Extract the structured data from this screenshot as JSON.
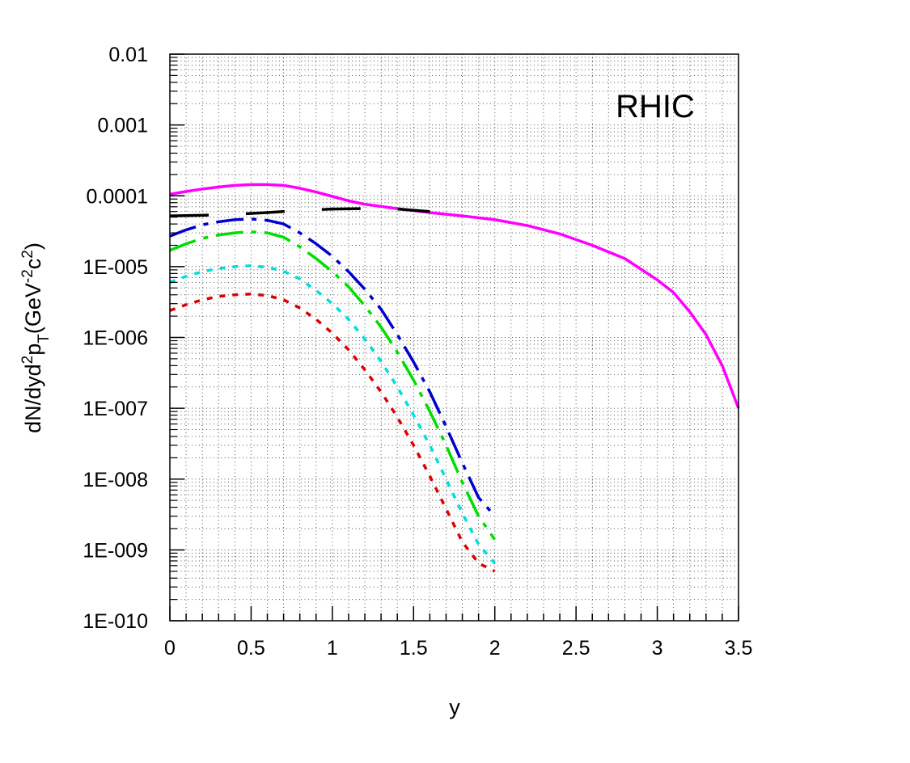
{
  "chart_data": {
    "type": "line",
    "title": "",
    "annotation": "RHIC",
    "xlabel": "y",
    "ylabel": {
      "parts": [
        "dN/dyd",
        "2",
        "p",
        "T",
        "(GeV",
        "-2",
        "c",
        "2",
        ")"
      ]
    },
    "xlim": [
      0,
      3.5
    ],
    "ylim": [
      1e-10,
      0.01
    ],
    "yscale": "log",
    "grid": true,
    "legend": "none",
    "x_ticks": [
      0,
      0.5,
      1,
      1.5,
      2,
      2.5,
      3,
      3.5
    ],
    "x_tick_labels": [
      "0",
      "0.5",
      "1",
      "1.5",
      "2",
      "2.5",
      "3",
      "3.5"
    ],
    "y_ticks": [
      1e-10,
      1e-09,
      1e-08,
      1e-07,
      1e-06,
      1e-05,
      0.0001,
      0.001,
      0.01
    ],
    "y_tick_labels": [
      "1E-010",
      "1E-009",
      "1E-008",
      "1E-007",
      "1E-006",
      "1E-005",
      "0.0001",
      "0.001",
      "0.01"
    ],
    "series": [
      {
        "color": "#ff00ff",
        "dash": "solid",
        "x": [
          0,
          0.1,
          0.2,
          0.3,
          0.4,
          0.5,
          0.6,
          0.7,
          0.8,
          0.9,
          1.0,
          1.1,
          1.2,
          1.4,
          1.6,
          1.8,
          2.0,
          2.2,
          2.4,
          2.6,
          2.8,
          3.0,
          3.1,
          3.2,
          3.3,
          3.4,
          3.5
        ],
        "y": [
          0.000105,
          0.000115,
          0.000125,
          0.000133,
          0.00014,
          0.000144,
          0.000144,
          0.00014,
          0.000128,
          0.000113,
          9.8e-05,
          8.5e-05,
          7.6e-05,
          6.6e-05,
          5.8e-05,
          5.2e-05,
          4.6e-05,
          3.8e-05,
          2.9e-05,
          2e-05,
          1.3e-05,
          6.5e-06,
          4.3e-06,
          2.3e-06,
          1.1e-06,
          4e-07,
          1e-07
        ]
      },
      {
        "color": "#000000",
        "dash": "long-dash",
        "x": [
          0,
          0.2,
          0.4,
          0.6,
          0.8,
          1.0,
          1.2,
          1.4,
          1.6
        ],
        "y": [
          5.2e-05,
          5.3e-05,
          5.5e-05,
          5.8e-05,
          6.2e-05,
          6.5e-05,
          6.6e-05,
          6.5e-05,
          6e-05
        ]
      },
      {
        "color": "#0000cc",
        "dash": "dash-dot",
        "x": [
          0,
          0.1,
          0.2,
          0.3,
          0.4,
          0.5,
          0.6,
          0.7,
          0.8,
          0.9,
          1.0,
          1.1,
          1.2,
          1.3,
          1.4,
          1.5,
          1.6,
          1.7,
          1.8,
          1.9,
          2.0
        ],
        "y": [
          2.7e-05,
          3.3e-05,
          3.9e-05,
          4.3e-05,
          4.6e-05,
          4.7e-05,
          4.5e-05,
          4e-05,
          3e-05,
          2.1e-05,
          1.4e-05,
          8.5e-06,
          4.8e-06,
          2.5e-06,
          1.1e-06,
          4.5e-07,
          1.7e-07,
          5.5e-08,
          1.7e-08,
          5.5e-09,
          3e-09
        ]
      },
      {
        "color": "#00dd00",
        "dash": "dash-dot",
        "x": [
          0,
          0.1,
          0.2,
          0.3,
          0.4,
          0.5,
          0.6,
          0.7,
          0.8,
          0.9,
          1.0,
          1.1,
          1.2,
          1.3,
          1.4,
          1.5,
          1.6,
          1.7,
          1.8,
          1.9,
          2.0
        ],
        "y": [
          1.7e-05,
          2.1e-05,
          2.5e-05,
          2.8e-05,
          3e-05,
          3.1e-05,
          3e-05,
          2.6e-05,
          1.9e-05,
          1.3e-05,
          8.5e-06,
          5.2e-06,
          2.8e-06,
          1.4e-06,
          6.2e-07,
          2.5e-07,
          9e-08,
          3e-08,
          9e-09,
          3e-09,
          1.4e-09
        ]
      },
      {
        "color": "#00dddd",
        "dash": "dotted",
        "x": [
          0,
          0.1,
          0.2,
          0.3,
          0.4,
          0.5,
          0.6,
          0.7,
          0.8,
          0.9,
          1.0,
          1.1,
          1.2,
          1.3,
          1.4,
          1.5,
          1.6,
          1.7,
          1.8,
          1.9,
          2.0
        ],
        "y": [
          6e-06,
          7.3e-06,
          8.5e-06,
          9.4e-06,
          1e-05,
          1.03e-05,
          9.8e-06,
          8.6e-06,
          6.7e-06,
          4.6e-06,
          3e-06,
          1.8e-06,
          9.5e-07,
          4.6e-07,
          2e-07,
          8e-08,
          3e-08,
          1e-08,
          3.3e-09,
          1.2e-09,
          6.5e-10
        ]
      },
      {
        "color": "#dd0000",
        "dash": "dotted",
        "x": [
          0,
          0.1,
          0.2,
          0.3,
          0.4,
          0.5,
          0.6,
          0.7,
          0.8,
          0.9,
          1.0,
          1.1,
          1.2,
          1.3,
          1.4,
          1.5,
          1.6,
          1.7,
          1.8,
          1.9,
          2.0
        ],
        "y": [
          2.4e-06,
          2.9e-06,
          3.4e-06,
          3.8e-06,
          4e-06,
          4.1e-06,
          3.9e-06,
          3.4e-06,
          2.6e-06,
          1.8e-06,
          1.15e-06,
          6.7e-07,
          3.5e-07,
          1.7e-07,
          7.5e-08,
          3e-08,
          1.1e-08,
          3.8e-09,
          1.3e-09,
          6.5e-10,
          5e-10
        ]
      }
    ]
  }
}
